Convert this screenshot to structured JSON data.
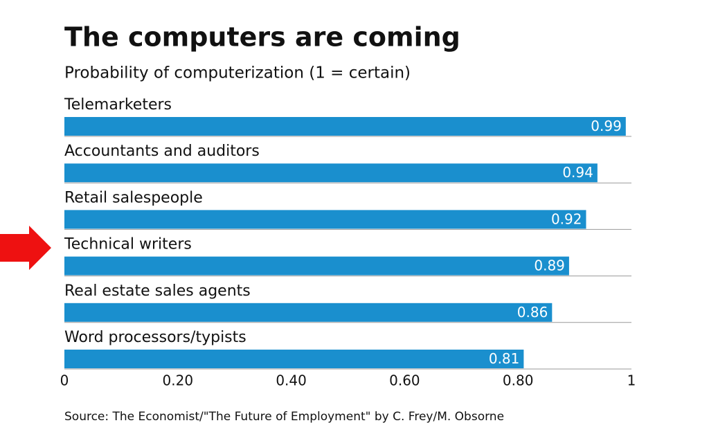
{
  "chart_data": {
    "type": "hbar",
    "title": "The computers are coming",
    "subtitle": "Probability of computerization (1 = certain)",
    "categories": [
      "Telemarketers",
      "Accountants and auditors",
      "Retail salespeople",
      "Technical writers",
      "Real estate sales agents",
      "Word processors/typists"
    ],
    "values": [
      0.99,
      0.94,
      0.92,
      0.89,
      0.86,
      0.81
    ],
    "color": "#1a8fce",
    "xlim": [
      0,
      1
    ],
    "xticks": [
      0,
      {
        "value": 0.2,
        "label": "0.20"
      },
      {
        "value": 0.4,
        "label": "0.40"
      },
      {
        "value": 0.6,
        "label": "0.60"
      },
      {
        "value": 0.8,
        "label": "0.80"
      },
      1
    ],
    "source": "Source: The Economist/\"The Future of Employment\" by C. Frey/M. Obsorne"
  }
}
